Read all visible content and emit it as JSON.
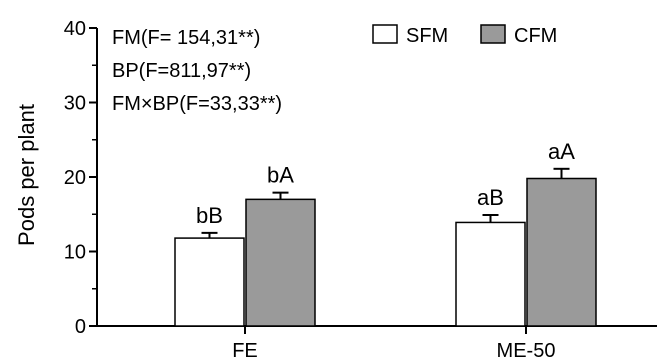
{
  "chart_data": {
    "type": "bar",
    "ylabel": "Pods per plant",
    "ylim": [
      0,
      40
    ],
    "yticks": [
      0,
      10,
      20,
      30,
      40
    ],
    "categories": [
      "FE",
      "ME-50"
    ],
    "series": [
      {
        "name": "SFM",
        "color": "#ffffff",
        "values": [
          11.8,
          13.9
        ],
        "errors": [
          0.7,
          1.0
        ],
        "labels": [
          "bB",
          "aB"
        ]
      },
      {
        "name": "CFM",
        "color": "#9a9a9a",
        "values": [
          17.0,
          19.8
        ],
        "errors": [
          0.9,
          1.3
        ],
        "labels": [
          "bA",
          "aA"
        ]
      }
    ],
    "annotations": [
      "FM(F= 154,31**)",
      "BP(F=811,97**)",
      "FM×BP(F=33,33**)"
    ],
    "legend_position": "top-right",
    "grid": false
  }
}
